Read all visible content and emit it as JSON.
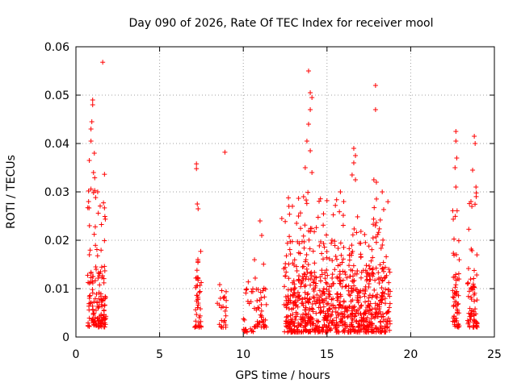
{
  "chart_data": {
    "type": "scatter",
    "title": "Day 090 of 2026, Rate Of TEC Index for receiver mool",
    "xlabel": "GPS time / hours",
    "ylabel": "ROTI / TECUs",
    "xlim": [
      0,
      25
    ],
    "ylim": [
      0,
      0.06
    ],
    "xticks": [
      "0",
      "5",
      "10",
      "15",
      "20",
      "25"
    ],
    "yticks": [
      "0",
      "0.01",
      "0.02",
      "0.03",
      "0.04",
      "0.05",
      "0.06"
    ],
    "xtick_values": [
      0,
      5,
      10,
      15,
      20,
      25
    ],
    "ytick_values": [
      0,
      0.01,
      0.02,
      0.03,
      0.04,
      0.05,
      0.06
    ],
    "grid": true,
    "marker": "+",
    "color": "#ff0000",
    "clusters": [
      {
        "x_range": [
          0.7,
          1.8
        ],
        "y_core": [
          0.002,
          0.014
        ],
        "y_max": 0.035,
        "density": 150
      },
      {
        "x_range": [
          7.1,
          7.5
        ],
        "y_core": [
          0.002,
          0.012
        ],
        "y_max": 0.018,
        "density": 45
      },
      {
        "x_range": [
          8.4,
          9.0
        ],
        "y_core": [
          0.002,
          0.008
        ],
        "y_max": 0.011,
        "density": 25
      },
      {
        "x_range": [
          10.0,
          10.6
        ],
        "y_core": [
          0.001,
          0.008
        ],
        "y_max": 0.012,
        "density": 25
      },
      {
        "x_range": [
          10.6,
          11.4
        ],
        "y_core": [
          0.002,
          0.01
        ],
        "y_max": 0.016,
        "density": 45
      },
      {
        "x_range": [
          12.4,
          18.8
        ],
        "y_core": [
          0.001,
          0.013
        ],
        "y_max": 0.03,
        "density": 900
      },
      {
        "x_range": [
          22.5,
          22.9
        ],
        "y_core": [
          0.002,
          0.012
        ],
        "y_max": 0.03,
        "density": 60
      },
      {
        "x_range": [
          23.4,
          24.0
        ],
        "y_core": [
          0.002,
          0.012
        ],
        "y_max": 0.03,
        "density": 70
      }
    ],
    "points": [
      [
        1.6,
        0.0568
      ],
      [
        1.0,
        0.049
      ],
      [
        1.0,
        0.048
      ],
      [
        0.95,
        0.0445
      ],
      [
        0.9,
        0.043
      ],
      [
        0.9,
        0.0405
      ],
      [
        0.8,
        0.0365
      ],
      [
        1.05,
        0.034
      ],
      [
        1.3,
        0.03
      ],
      [
        1.1,
        0.038
      ],
      [
        7.2,
        0.0358
      ],
      [
        7.2,
        0.0348
      ],
      [
        7.25,
        0.0275
      ],
      [
        7.3,
        0.0265
      ],
      [
        8.9,
        0.0382
      ],
      [
        11.0,
        0.024
      ],
      [
        11.1,
        0.021
      ],
      [
        13.9,
        0.055
      ],
      [
        14.0,
        0.0505
      ],
      [
        14.1,
        0.0495
      ],
      [
        14.0,
        0.047
      ],
      [
        13.9,
        0.044
      ],
      [
        13.8,
        0.0405
      ],
      [
        14.0,
        0.0385
      ],
      [
        13.7,
        0.035
      ],
      [
        14.1,
        0.034
      ],
      [
        13.6,
        0.029
      ],
      [
        13.3,
        0.025
      ],
      [
        12.3,
        0.0245
      ],
      [
        16.6,
        0.039
      ],
      [
        16.7,
        0.0375
      ],
      [
        16.6,
        0.036
      ],
      [
        16.5,
        0.0335
      ],
      [
        16.7,
        0.0325
      ],
      [
        17.9,
        0.052
      ],
      [
        17.9,
        0.047
      ],
      [
        17.8,
        0.0325
      ],
      [
        17.95,
        0.032
      ],
      [
        18.3,
        0.03
      ],
      [
        15.8,
        0.03
      ],
      [
        16.0,
        0.028
      ],
      [
        22.7,
        0.0425
      ],
      [
        22.7,
        0.0405
      ],
      [
        22.75,
        0.037
      ],
      [
        22.65,
        0.035
      ],
      [
        22.7,
        0.031
      ],
      [
        23.8,
        0.0415
      ],
      [
        23.85,
        0.04
      ],
      [
        23.7,
        0.0345
      ],
      [
        23.9,
        0.031
      ],
      [
        23.6,
        0.028
      ]
    ]
  }
}
